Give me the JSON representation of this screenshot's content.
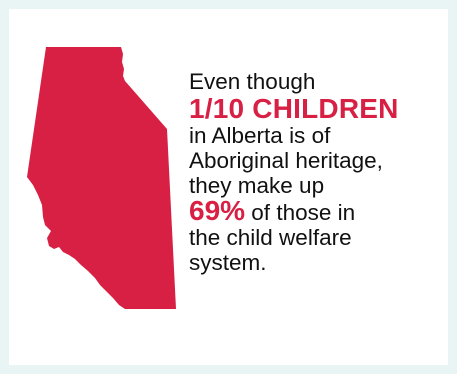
{
  "theme": {
    "background": "#e9f5f4",
    "card": "#ffffff",
    "accent": "#d81f44",
    "text": "#111111"
  },
  "map": {
    "icon": "alberta-map-icon",
    "color": "#d81f44"
  },
  "text": {
    "line1": "Even though",
    "highlight1": "1/10 CHILDREN",
    "line3": "in Alberta is of",
    "line4": "Aboriginal heritage,",
    "line5": "they make up",
    "highlight2": "69%",
    "line6_rest": " of those in",
    "line7": "the child welfare",
    "line8": "system."
  }
}
